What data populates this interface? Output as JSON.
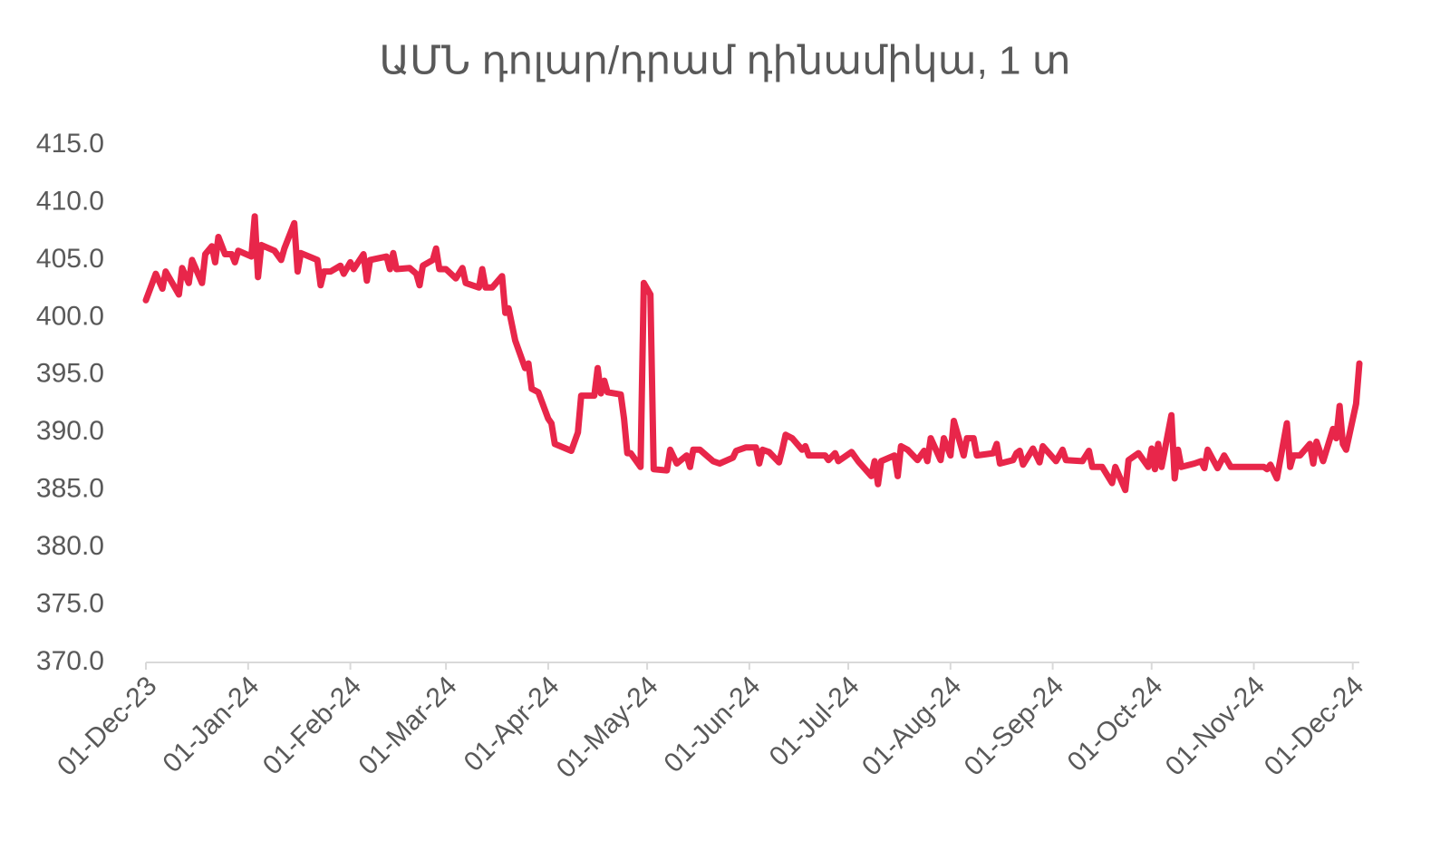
{
  "chart_data": {
    "type": "line",
    "title": "ԱՄՆ դոլար/դրամ դինամիկա, 1 տ",
    "x": [
      "2023-12-01",
      "2023-12-04",
      "2023-12-06",
      "2023-12-07",
      "2023-12-11",
      "2023-12-12",
      "2023-12-14",
      "2023-12-15",
      "2023-12-18",
      "2023-12-19",
      "2023-12-21",
      "2023-12-22",
      "2023-12-23",
      "2023-12-25",
      "2023-12-27",
      "2023-12-28",
      "2023-12-29",
      "2024-01-02",
      "2024-01-03",
      "2024-01-04",
      "2024-01-05",
      "2024-01-09",
      "2024-01-11",
      "2024-01-12",
      "2024-01-15",
      "2024-01-16",
      "2024-01-17",
      "2024-01-22",
      "2024-01-23",
      "2024-01-24",
      "2024-01-26",
      "2024-01-29",
      "2024-01-30",
      "2024-02-01",
      "2024-02-02",
      "2024-02-05",
      "2024-02-06",
      "2024-02-07",
      "2024-02-12",
      "2024-02-13",
      "2024-02-14",
      "2024-02-15",
      "2024-02-19",
      "2024-02-21",
      "2024-02-22",
      "2024-02-23",
      "2024-02-26",
      "2024-02-27",
      "2024-02-28",
      "2024-03-01",
      "2024-03-04",
      "2024-03-06",
      "2024-03-07",
      "2024-03-11",
      "2024-03-12",
      "2024-03-13",
      "2024-03-15",
      "2024-03-18",
      "2024-03-19",
      "2024-03-20",
      "2024-03-22",
      "2024-03-25",
      "2024-03-26",
      "2024-03-27",
      "2024-03-29",
      "2024-04-01",
      "2024-04-02",
      "2024-04-03",
      "2024-04-08",
      "2024-04-10",
      "2024-04-11",
      "2024-04-15",
      "2024-04-16",
      "2024-04-17",
      "2024-04-18",
      "2024-04-19",
      "2024-04-23",
      "2024-04-24",
      "2024-04-25",
      "2024-04-26",
      "2024-04-29",
      "2024-04-30",
      "2024-05-02",
      "2024-05-03",
      "2024-05-07",
      "2024-05-08",
      "2024-05-10",
      "2024-05-13",
      "2024-05-14",
      "2024-05-15",
      "2024-05-17",
      "2024-05-21",
      "2024-05-23",
      "2024-05-27",
      "2024-05-28",
      "2024-05-31",
      "2024-06-03",
      "2024-06-04",
      "2024-06-05",
      "2024-06-07",
      "2024-06-10",
      "2024-06-11",
      "2024-06-12",
      "2024-06-14",
      "2024-06-17",
      "2024-06-18",
      "2024-06-19",
      "2024-06-21",
      "2024-06-24",
      "2024-06-25",
      "2024-06-27",
      "2024-06-28",
      "2024-07-02",
      "2024-07-04",
      "2024-07-08",
      "2024-07-09",
      "2024-07-10",
      "2024-07-11",
      "2024-07-15",
      "2024-07-16",
      "2024-07-17",
      "2024-07-19",
      "2024-07-22",
      "2024-07-24",
      "2024-07-25",
      "2024-07-26",
      "2024-07-29",
      "2024-07-30",
      "2024-08-01",
      "2024-08-02",
      "2024-08-05",
      "2024-08-06",
      "2024-08-08",
      "2024-08-09",
      "2024-08-14",
      "2024-08-15",
      "2024-08-16",
      "2024-08-20",
      "2024-08-21",
      "2024-08-22",
      "2024-08-23",
      "2024-08-26",
      "2024-08-28",
      "2024-08-29",
      "2024-09-02",
      "2024-09-04",
      "2024-09-05",
      "2024-09-10",
      "2024-09-12",
      "2024-09-13",
      "2024-09-16",
      "2024-09-19",
      "2024-09-20",
      "2024-09-23",
      "2024-09-24",
      "2024-09-27",
      "2024-09-30",
      "2024-10-01",
      "2024-10-02",
      "2024-10-03",
      "2024-10-04",
      "2024-10-07",
      "2024-10-08",
      "2024-10-09",
      "2024-10-10",
      "2024-10-14",
      "2024-10-16",
      "2024-10-17",
      "2024-10-18",
      "2024-10-21",
      "2024-10-23",
      "2024-10-25",
      "2024-10-28",
      "2024-11-01",
      "2024-11-04",
      "2024-11-05",
      "2024-11-06",
      "2024-11-08",
      "2024-11-11",
      "2024-11-12",
      "2024-11-13",
      "2024-11-15",
      "2024-11-18",
      "2024-11-19",
      "2024-11-20",
      "2024-11-22",
      "2024-11-25",
      "2024-11-26",
      "2024-11-27",
      "2024-11-28",
      "2024-11-29",
      "2024-12-02",
      "2024-12-03"
    ],
    "series": [
      {
        "color": "#e8264a",
        "values": [
          401.5,
          403.8,
          402.5,
          404,
          402,
          404.3,
          403,
          405,
          403,
          405.5,
          406.2,
          404.8,
          407,
          405.5,
          405.5,
          404.8,
          405.8,
          405.3,
          408.8,
          403.5,
          406.3,
          405.8,
          405,
          406,
          408.2,
          404,
          405.6,
          405,
          402.8,
          404,
          404,
          404.5,
          403.8,
          404.8,
          404.2,
          405.5,
          403.2,
          405,
          405.3,
          404.2,
          405.6,
          404.2,
          404.3,
          403.8,
          402.8,
          404.5,
          405,
          406,
          404.2,
          404.2,
          403.4,
          404.3,
          403,
          402.6,
          404.2,
          402.6,
          402.6,
          403.6,
          400.4,
          400.8,
          398,
          395.6,
          396,
          393.8,
          393.5,
          391.2,
          390.8,
          389,
          388.4,
          390,
          393.2,
          393.2,
          395.6,
          393.4,
          394.5,
          393.5,
          393.3,
          391.2,
          388.2,
          388.2,
          387,
          403,
          402,
          386.8,
          386.7,
          388.5,
          387.3,
          388,
          387,
          388.5,
          388.5,
          387.5,
          387.3,
          387.8,
          388.4,
          388.7,
          388.7,
          387.3,
          388.5,
          388.3,
          387.4,
          388.5,
          389.8,
          389.5,
          388.5,
          388.8,
          388,
          388,
          388,
          387.6,
          388.2,
          387.5,
          388.3,
          387.5,
          386.2,
          387.5,
          385.5,
          387.5,
          388,
          386.2,
          388.8,
          388.5,
          387.6,
          388.4,
          387.5,
          389.5,
          387.6,
          389.5,
          388,
          391,
          388,
          389.5,
          389.5,
          388,
          388.2,
          389,
          387.3,
          387.6,
          388.2,
          388.4,
          387.2,
          388.6,
          387.4,
          388.8,
          387.5,
          388.5,
          387.6,
          387.5,
          388.4,
          387,
          387,
          385.6,
          387,
          385,
          387.6,
          388.2,
          387,
          388.6,
          386.8,
          389,
          387,
          391.5,
          386,
          388.5,
          387,
          387.3,
          387.5,
          386.9,
          388.5,
          386.9,
          388,
          387,
          387,
          387,
          387,
          386.8,
          387.2,
          386,
          390.8,
          387,
          388,
          388,
          389,
          387.3,
          389.2,
          387.5,
          390.3,
          389.5,
          392.3,
          389,
          388.5,
          392.5,
          396
        ]
      }
    ],
    "xlim": [
      "2023-12-01",
      "2024-12-03"
    ],
    "xticks": [
      {
        "value": "2023-12-01",
        "label": "01-Dec-23"
      },
      {
        "value": "2024-01-01",
        "label": "01-Jan-24"
      },
      {
        "value": "2024-02-01",
        "label": "01-Feb-24"
      },
      {
        "value": "2024-03-01",
        "label": "01-Mar-24"
      },
      {
        "value": "2024-04-01",
        "label": "01-Apr-24"
      },
      {
        "value": "2024-05-01",
        "label": "01-May-24"
      },
      {
        "value": "2024-06-01",
        "label": "01-Jun-24"
      },
      {
        "value": "2024-07-01",
        "label": "01-Jul-24"
      },
      {
        "value": "2024-08-01",
        "label": "01-Aug-24"
      },
      {
        "value": "2024-09-01",
        "label": "01-Sep-24"
      },
      {
        "value": "2024-10-01",
        "label": "01-Oct-24"
      },
      {
        "value": "2024-11-01",
        "label": "01-Nov-24"
      },
      {
        "value": "2024-12-01",
        "label": "01-Dec-24"
      }
    ],
    "ylim": [
      370,
      415
    ],
    "yticks": [
      {
        "value": 370,
        "label": "370.0"
      },
      {
        "value": 375,
        "label": "375.0"
      },
      {
        "value": 380,
        "label": "380.0"
      },
      {
        "value": 385,
        "label": "385.0"
      },
      {
        "value": 390,
        "label": "390.0"
      },
      {
        "value": 395,
        "label": "395.0"
      },
      {
        "value": 400,
        "label": "400.0"
      },
      {
        "value": 405,
        "label": "405.0"
      },
      {
        "value": 410,
        "label": "410.0"
      },
      {
        "value": 415,
        "label": "415.0"
      }
    ],
    "grid": false
  }
}
